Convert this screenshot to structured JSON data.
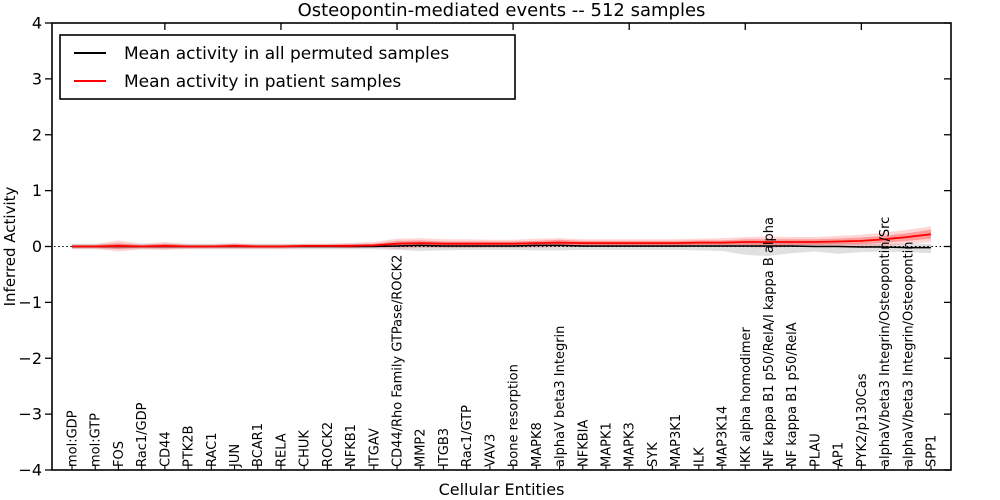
{
  "chart_data": {
    "type": "line",
    "title": "Osteopontin-mediated events -- 512 samples",
    "xlabel": "Cellular Entities",
    "ylabel": "Inferred Activity",
    "ylim": [
      -4,
      4
    ],
    "yticks": [
      -4,
      -3,
      -2,
      -1,
      0,
      1,
      2,
      3,
      4
    ],
    "ytick_labels": [
      "−4",
      "−3",
      "−2",
      "−1",
      "0",
      "1",
      "2",
      "3",
      "4"
    ],
    "top_tick_indices": [
      4,
      9,
      14,
      19,
      24,
      29,
      34
    ],
    "grid": false,
    "legend_position": "upper left",
    "zero_line": {
      "y": 0,
      "style": "dotted",
      "color": "#000000"
    },
    "colors": {
      "permuted_line": "#000000",
      "patient_line": "#ff0000",
      "permuted_band": "#000000",
      "patient_band": "#ff0000",
      "frame": "#000000",
      "background": "#ffffff"
    },
    "categories": [
      "mol:GDP",
      "mol:GTP",
      "FOS",
      "Rac1/GDP",
      "CD44",
      "PTK2B",
      "RAC1",
      "JUN",
      "BCAR1",
      "RELA",
      "CHUK",
      "ROCK2",
      "NFKB1",
      "ITGAV",
      "CD44/Rho Family GTPase/ROCK2",
      "MMP2",
      "ITGB3",
      "Rac1/GTP",
      "VAV3",
      "bone resorption",
      "MAPK8",
      "alphaV beta3 Integrin",
      "NFKBIA",
      "MAPK1",
      "MAPK3",
      "SYK",
      "MAP3K1",
      "ILK",
      "MAP3K14",
      "IKK alpha homodimer",
      "NF kappa B1 p50/RelA/I kappa B alpha",
      "NF kappa B1 p50/RelA",
      "PLAU",
      "AP1",
      "PYK2/p130Cas",
      "alphaV/beta3 Integrin/Osteopontin/Src",
      "alphaV/beta3 Integrin/Osteopontin",
      "SPP1"
    ],
    "series": [
      {
        "name": "Mean activity in all permuted samples",
        "slug": "permuted-mean",
        "color": "#000000",
        "line_width": 1.5,
        "values": [
          0,
          0,
          0,
          0,
          0,
          0,
          0,
          0,
          0,
          0,
          0,
          0,
          0,
          0,
          0.01,
          0.02,
          0.01,
          0.01,
          0.01,
          0.01,
          0.02,
          0.02,
          0.01,
          0.01,
          0.01,
          0.01,
          0.01,
          0.01,
          0.01,
          0.01,
          0.01,
          0.01,
          0,
          0,
          -0.01,
          -0.01,
          -0.02,
          -0.02
        ],
        "bands": [
          {
            "label": "permuted-spread",
            "color": "#000000",
            "opacity": 0.12,
            "high": [
              0.05,
              0.05,
              0.05,
              0.05,
              0.05,
              0.05,
              0.05,
              0.05,
              0.05,
              0.05,
              0.05,
              0.05,
              0.05,
              0.05,
              0.06,
              0.07,
              0.06,
              0.06,
              0.06,
              0.06,
              0.07,
              0.07,
              0.06,
              0.06,
              0.06,
              0.06,
              0.06,
              0.06,
              0.06,
              0.06,
              0.06,
              0.06,
              0.06,
              0.06,
              0.05,
              0.05,
              0.05,
              0.05
            ],
            "low": [
              -0.05,
              -0.05,
              -0.05,
              -0.05,
              -0.05,
              -0.05,
              -0.05,
              -0.05,
              -0.05,
              -0.05,
              -0.05,
              -0.05,
              -0.05,
              -0.05,
              -0.06,
              -0.08,
              -0.07,
              -0.06,
              -0.06,
              -0.06,
              -0.07,
              -0.07,
              -0.06,
              -0.06,
              -0.06,
              -0.06,
              -0.06,
              -0.07,
              -0.08,
              -0.15,
              -0.17,
              -0.12,
              -0.09,
              -0.13,
              -0.1,
              -0.09,
              -0.1,
              -0.12
            ]
          }
        ]
      },
      {
        "name": "Mean activity in patient samples",
        "slug": "patient-mean",
        "color": "#ff0000",
        "line_width": 1.8,
        "values": [
          0,
          0,
          0.01,
          0,
          0.01,
          0,
          0,
          0.01,
          0,
          0,
          0.01,
          0.01,
          0.01,
          0.02,
          0.05,
          0.06,
          0.05,
          0.05,
          0.05,
          0.05,
          0.06,
          0.07,
          0.06,
          0.06,
          0.06,
          0.06,
          0.06,
          0.07,
          0.07,
          0.08,
          0.08,
          0.08,
          0.08,
          0.09,
          0.1,
          0.13,
          0.17,
          0.22
        ],
        "bands": [
          {
            "label": "patient-spread-outer",
            "color": "#ff0000",
            "opacity": 0.16,
            "high": [
              0.04,
              0.04,
              0.11,
              0.05,
              0.08,
              0.04,
              0.04,
              0.06,
              0.04,
              0.04,
              0.05,
              0.05,
              0.06,
              0.08,
              0.14,
              0.15,
              0.13,
              0.13,
              0.12,
              0.12,
              0.14,
              0.15,
              0.13,
              0.13,
              0.13,
              0.13,
              0.13,
              0.14,
              0.15,
              0.17,
              0.18,
              0.17,
              0.17,
              0.19,
              0.21,
              0.25,
              0.3,
              0.36
            ],
            "low": [
              -0.04,
              -0.04,
              -0.09,
              -0.05,
              -0.06,
              -0.04,
              -0.04,
              -0.04,
              -0.04,
              -0.04,
              -0.03,
              -0.03,
              -0.03,
              -0.02,
              -0.04,
              -0.03,
              -0.03,
              -0.03,
              -0.02,
              -0.02,
              -0.02,
              -0.01,
              -0.01,
              -0.01,
              -0.01,
              -0.01,
              -0.01,
              0,
              -0.01,
              -0.01,
              -0.02,
              -0.01,
              -0.01,
              -0.01,
              -0.01,
              0.01,
              0.04,
              0.08
            ]
          },
          {
            "label": "patient-spread-inner",
            "color": "#ff0000",
            "opacity": 0.28,
            "high": [
              0.02,
              0.02,
              0.06,
              0.02,
              0.05,
              0.02,
              0.02,
              0.04,
              0.02,
              0.02,
              0.03,
              0.03,
              0.04,
              0.05,
              0.1,
              0.11,
              0.09,
              0.09,
              0.09,
              0.09,
              0.1,
              0.12,
              0.1,
              0.1,
              0.1,
              0.1,
              0.1,
              0.11,
              0.11,
              0.13,
              0.13,
              0.13,
              0.13,
              0.14,
              0.16,
              0.19,
              0.24,
              0.3
            ],
            "low": [
              -0.02,
              -0.02,
              -0.04,
              -0.02,
              -0.03,
              -0.02,
              -0.02,
              -0.02,
              -0.02,
              -0.02,
              -0.01,
              -0.01,
              -0.02,
              -0.01,
              0,
              0.01,
              0.01,
              0.01,
              0.01,
              0.01,
              0.02,
              0.02,
              0.02,
              0.02,
              0.02,
              0.02,
              0.02,
              0.03,
              0.03,
              0.03,
              0.03,
              0.03,
              0.03,
              0.04,
              0.04,
              0.07,
              0.1,
              0.14
            ]
          }
        ]
      }
    ]
  }
}
